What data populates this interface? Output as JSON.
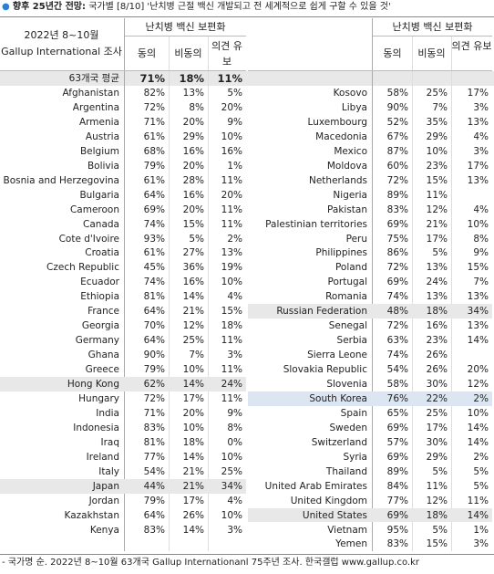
{
  "title_bold": "향후 25년간 전망:",
  "title_rest": "국가별 [8/10] '난치병 근절 백신 개발되고 전 세계적으로 쉽게 구할 수 있을 것'",
  "left": {
    "header": {
      "date": "2022년 8~10월",
      "survey": "Gallup International 조사",
      "group": "난치병 백신 보편화",
      "columns": [
        "동의",
        "비동의",
        "의견 유보"
      ]
    },
    "average": {
      "label": "63개국 평균",
      "values": [
        "71%",
        "18%",
        "11%"
      ]
    },
    "rows": [
      [
        "Afghanistan",
        "82%",
        "13%",
        "5%"
      ],
      [
        "Argentina",
        "72%",
        "8%",
        "20%"
      ],
      [
        "Armenia",
        "71%",
        "20%",
        "9%"
      ],
      [
        "Austria",
        "61%",
        "29%",
        "10%"
      ],
      [
        "Belgium",
        "68%",
        "16%",
        "16%"
      ],
      [
        "Bolivia",
        "79%",
        "20%",
        "1%"
      ],
      [
        "Bosnia and Herzegovina",
        "61%",
        "28%",
        "11%"
      ],
      [
        "Bulgaria",
        "64%",
        "16%",
        "20%"
      ],
      [
        "Cameroon",
        "69%",
        "20%",
        "11%"
      ],
      [
        "Canada",
        "74%",
        "15%",
        "11%"
      ],
      [
        "Cote d'Ivoire",
        "93%",
        "5%",
        "2%"
      ],
      [
        "Croatia",
        "61%",
        "27%",
        "13%"
      ],
      [
        "Czech Republic",
        "45%",
        "36%",
        "19%"
      ],
      [
        "Ecuador",
        "74%",
        "16%",
        "10%"
      ],
      [
        "Ethiopia",
        "81%",
        "14%",
        "4%"
      ],
      [
        "France",
        "64%",
        "21%",
        "15%"
      ],
      [
        "Georgia",
        "70%",
        "12%",
        "18%"
      ],
      [
        "Germany",
        "64%",
        "25%",
        "11%"
      ],
      [
        "Ghana",
        "90%",
        "7%",
        "3%"
      ],
      [
        "Greece",
        "79%",
        "10%",
        "11%"
      ],
      [
        "Hong Kong",
        "62%",
        "14%",
        "24%"
      ],
      [
        "Hungary",
        "72%",
        "17%",
        "11%"
      ],
      [
        "India",
        "71%",
        "20%",
        "9%"
      ],
      [
        "Indonesia",
        "83%",
        "10%",
        "8%"
      ],
      [
        "Iraq",
        "81%",
        "18%",
        "0%"
      ],
      [
        "Ireland",
        "77%",
        "14%",
        "10%"
      ],
      [
        "Italy",
        "54%",
        "21%",
        "25%"
      ],
      [
        "Japan",
        "44%",
        "21%",
        "34%"
      ],
      [
        "Jordan",
        "79%",
        "17%",
        "4%"
      ],
      [
        "Kazakhstan",
        "64%",
        "26%",
        "10%"
      ],
      [
        "Kenya",
        "83%",
        "14%",
        "3%"
      ]
    ]
  },
  "right": {
    "header": {
      "group": "난치병 백신 보편화",
      "columns": [
        "동의",
        "비동의",
        "의견 유보"
      ]
    },
    "rows": [
      [
        "Kosovo",
        "58%",
        "25%",
        "17%"
      ],
      [
        "Libya",
        "90%",
        "7%",
        "3%"
      ],
      [
        "Luxembourg",
        "52%",
        "35%",
        "13%"
      ],
      [
        "Macedonia",
        "67%",
        "29%",
        "4%"
      ],
      [
        "Mexico",
        "87%",
        "10%",
        "3%"
      ],
      [
        "Moldova",
        "60%",
        "23%",
        "17%"
      ],
      [
        "Netherlands",
        "72%",
        "15%",
        "13%"
      ],
      [
        "Nigeria",
        "89%",
        "11%",
        null
      ],
      [
        "Pakistan",
        "83%",
        "12%",
        "4%"
      ],
      [
        "Palestinian territories",
        "69%",
        "21%",
        "10%"
      ],
      [
        "Peru",
        "75%",
        "17%",
        "8%"
      ],
      [
        "Philippines",
        "86%",
        "5%",
        "9%"
      ],
      [
        "Poland",
        "72%",
        "13%",
        "15%"
      ],
      [
        "Portugal",
        "69%",
        "24%",
        "7%"
      ],
      [
        "Romania",
        "74%",
        "13%",
        "13%"
      ],
      [
        "Russian Federation",
        "48%",
        "18%",
        "34%"
      ],
      [
        "Senegal",
        "72%",
        "16%",
        "13%"
      ],
      [
        "Serbia",
        "63%",
        "23%",
        "14%"
      ],
      [
        "Sierra Leone",
        "74%",
        "26%",
        null
      ],
      [
        "Slovakia Republic",
        "54%",
        "26%",
        "20%"
      ],
      [
        "Slovenia",
        "58%",
        "30%",
        "12%"
      ],
      [
        "South Korea",
        "76%",
        "22%",
        "2%"
      ],
      [
        "Spain",
        "65%",
        "25%",
        "10%"
      ],
      [
        "Sweden",
        "69%",
        "17%",
        "14%"
      ],
      [
        "Switzerland",
        "57%",
        "30%",
        "14%"
      ],
      [
        "Syria",
        "69%",
        "29%",
        "2%"
      ],
      [
        "Thailand",
        "89%",
        "5%",
        "5%"
      ],
      [
        "United Arab Emirates",
        "84%",
        "11%",
        "5%"
      ],
      [
        "United Kingdom",
        "77%",
        "12%",
        "11%"
      ],
      [
        "United States",
        "69%",
        "18%",
        "14%"
      ],
      [
        "Vietnam",
        "95%",
        "5%",
        "1%"
      ],
      [
        "Yemen",
        "83%",
        "15%",
        "3%"
      ]
    ]
  },
  "footnote": "- 국가명 순. 2022년 8~10월 63개국 Gallup Internationanl 75주년 조사. 한국갤럽 www.gallup.co.kr"
}
